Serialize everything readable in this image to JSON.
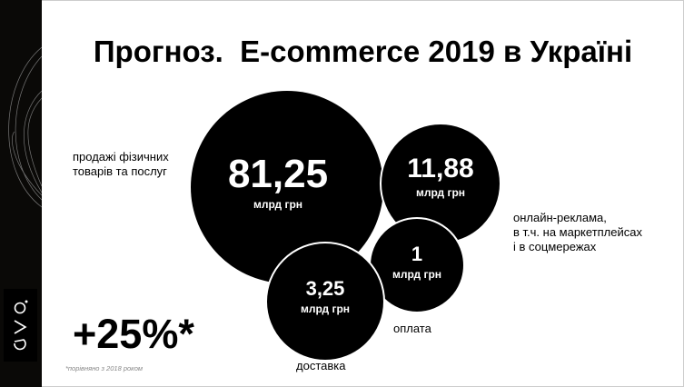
{
  "title": "Прогноз.  E-commerce 2019 в Україні",
  "logo_text": "evo",
  "bubbles": [
    {
      "value": "81,25",
      "unit": "млрд грн",
      "label": "продажі фізичних\nтоварів та послуг"
    },
    {
      "value": "11,88",
      "unit": "млрд грн",
      "label": "онлайн-реклама,\nв т.ч. на маркетплейсах\nі в соцмережах"
    },
    {
      "value": "1",
      "unit": "млрд грн",
      "label": "оплата"
    },
    {
      "value": "3,25",
      "unit": "млрд грн",
      "label": "доставка"
    }
  ],
  "growth": "+25%*",
  "footnote": "*порівняно з 2018 роком",
  "colors": {
    "bubble": "#000000",
    "sidebar": "#0a0907"
  }
}
